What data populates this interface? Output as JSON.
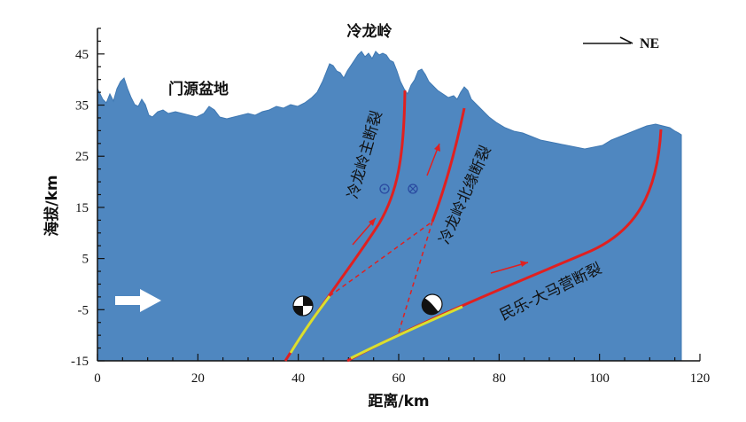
{
  "axes": {
    "xlabel": "距离/km",
    "ylabel": "海拔/km",
    "xlim": [
      0,
      120
    ],
    "ylim": [
      -15,
      50
    ],
    "x_ticks": [
      "0",
      "20",
      "40",
      "60",
      "80",
      "100",
      "120"
    ],
    "y_ticks": [
      "45",
      "35",
      "25",
      "15",
      "5",
      "-5",
      "-15"
    ]
  },
  "labels": {
    "peak": "冷龙岭",
    "basin": "门源盆地",
    "direction": "NE",
    "fault_main": "冷龙岭主断裂",
    "fault_north": "冷龙岭北缘断裂",
    "fault_minle": "民乐-大马营断裂"
  },
  "colors": {
    "topography": "#4f87c0",
    "fault": "#e02020",
    "rupture": "#d8e030",
    "arrow_white": "#ffffff"
  },
  "icons": {
    "out_of_page": "dot-circle-icon",
    "into_page": "cross-circle-icon",
    "focal_mechanism": "beachball-icon",
    "direction_arrow": "right-arrow-icon"
  }
}
